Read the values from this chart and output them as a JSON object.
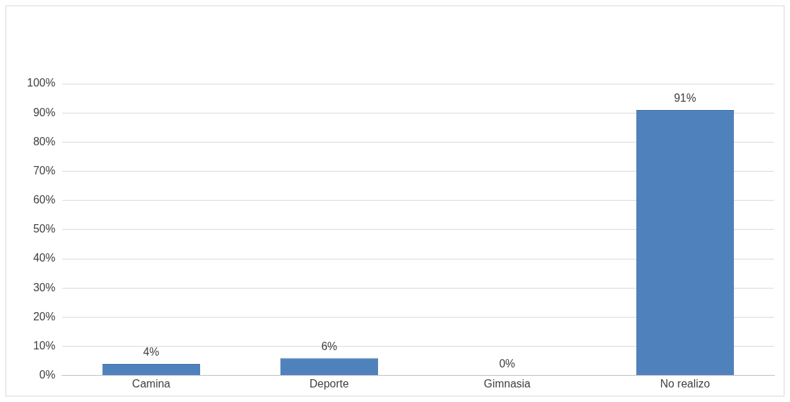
{
  "chart_data": {
    "type": "bar",
    "categories": [
      "Camina",
      "Deporte",
      "Gimnasia",
      "No realizo"
    ],
    "values": [
      4,
      6,
      0,
      91
    ],
    "value_labels": [
      "4%",
      "6%",
      "0%",
      "91%"
    ],
    "color": "#4f81bd",
    "ylim": [
      0,
      100
    ],
    "yticks": [
      {
        "value": 0,
        "label": "0%"
      },
      {
        "value": 10,
        "label": "10%"
      },
      {
        "value": 20,
        "label": "20%"
      },
      {
        "value": 30,
        "label": "30%"
      },
      {
        "value": 40,
        "label": "40%"
      },
      {
        "value": 50,
        "label": "50%"
      },
      {
        "value": 60,
        "label": "60%"
      },
      {
        "value": 70,
        "label": "70%"
      },
      {
        "value": 80,
        "label": "80%"
      },
      {
        "value": 90,
        "label": "90%"
      },
      {
        "value": 100,
        "label": "100%"
      }
    ],
    "grid": "y",
    "legend": false
  }
}
